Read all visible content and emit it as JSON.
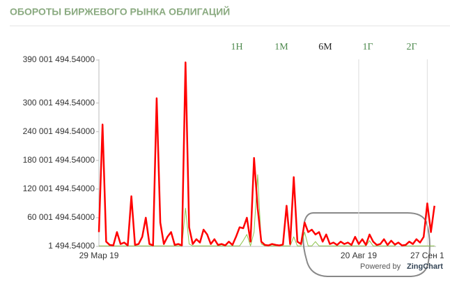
{
  "header": {
    "title": "ОБОРОТЫ БИРЖЕВОГО РЫНКА ОБЛИГАЦИЙ"
  },
  "range_buttons": [
    "1Н",
    "1М",
    "6М",
    "1Г",
    "2Г"
  ],
  "active_button": "6М",
  "footer": {
    "credit_prefix": "Powered by",
    "credit_brand": "ZingChart"
  },
  "chart_data": {
    "type": "line",
    "categories": [
      "29 Мар 19",
      null,
      null,
      null,
      null,
      null,
      null,
      null,
      null,
      null,
      null,
      null,
      null,
      null,
      null,
      null,
      null,
      null,
      null,
      null,
      null,
      null,
      null,
      null,
      null,
      null,
      null,
      null,
      null,
      null,
      null,
      null,
      null,
      null,
      null,
      null,
      null,
      null,
      null,
      null,
      null,
      null,
      null,
      null,
      null,
      null,
      null,
      null,
      null,
      null,
      null,
      null,
      null,
      null,
      null,
      null,
      null,
      null,
      null,
      null,
      null,
      null,
      null,
      null,
      null,
      null,
      null,
      null,
      null,
      null,
      null,
      null,
      "20 Авг 19",
      null,
      null,
      null,
      null,
      null,
      null,
      null,
      null,
      null,
      null,
      null,
      null,
      null,
      null,
      null,
      null,
      null,
      null,
      "27 Сен 1",
      null,
      null
    ],
    "series": [
      {
        "color": "#ff0000",
        "values": [
          30000000,
          255000000,
          10000000,
          3000000,
          2000000,
          30000000,
          5000000,
          8000000,
          2000000,
          105000000,
          3000000,
          5000000,
          20000000,
          60000000,
          5000000,
          2000000,
          310000000,
          50000000,
          5000000,
          20000000,
          30000000,
          3000000,
          5000000,
          2000000,
          385000000,
          40000000,
          5000000,
          15000000,
          8000000,
          35000000,
          25000000,
          5000000,
          15000000,
          3000000,
          5000000,
          2000000,
          10000000,
          3000000,
          20000000,
          40000000,
          38000000,
          60000000,
          10000000,
          185000000,
          80000000,
          10000000,
          3000000,
          2000000,
          5000000,
          3000000,
          2000000,
          4000000,
          85000000,
          5000000,
          145000000,
          10000000,
          5000000,
          50000000,
          30000000,
          35000000,
          25000000,
          30000000,
          10000000,
          25000000,
          5000000,
          8000000,
          3000000,
          10000000,
          5000000,
          8000000,
          3000000,
          20000000,
          5000000,
          15000000,
          3000000,
          25000000,
          10000000,
          3000000,
          5000000,
          15000000,
          3000000,
          12000000,
          4000000,
          8000000,
          2000000,
          3000000,
          10000000,
          5000000,
          15000000,
          8000000,
          20000000,
          90000000,
          30000000,
          85000000
        ]
      },
      {
        "color": "#8bc34a",
        "values": [
          1000000,
          1000000,
          1000000,
          1000000,
          1000000,
          1000000,
          1000000,
          1000000,
          1000000,
          1000000,
          1000000,
          1000000,
          1000000,
          1000000,
          1000000,
          1000000,
          1000000,
          1000000,
          1000000,
          1000000,
          1000000,
          1000000,
          1000000,
          1000000,
          80000000,
          5000000,
          1000000,
          1000000,
          1000000,
          1000000,
          1000000,
          1000000,
          1000000,
          1000000,
          1000000,
          1000000,
          1000000,
          1000000,
          1000000,
          1000000,
          12000000,
          25000000,
          1000000,
          30000000,
          150000000,
          5000000,
          1000000,
          1000000,
          1000000,
          1000000,
          1000000,
          1000000,
          1000000,
          1000000,
          20000000,
          1000000,
          1000000,
          30000000,
          1000000,
          1000000,
          10000000,
          1000000,
          1000000,
          1000000,
          1000000,
          1000000,
          1000000,
          1000000,
          1000000,
          1000000,
          1000000,
          1000000,
          1000000,
          1000000,
          1000000,
          12000000,
          1000000,
          1000000,
          1000000,
          1000000,
          1000000,
          1000000,
          1000000,
          8000000,
          1000000,
          1000000,
          1000000,
          1000000,
          1000000,
          1000000,
          1000000,
          1000000,
          1000000,
          1000000
        ]
      }
    ],
    "ylim": [
      1494.54,
      390001494.54
    ],
    "yticks": [
      {
        "value": 1494.54,
        "label": "1 494.54000"
      },
      {
        "value": 60001494.54,
        "label": "60 001 494.54000"
      },
      {
        "value": 120001494.54,
        "label": "120 001 494.54000"
      },
      {
        "value": 180001494.54,
        "label": "180 001 494.54000"
      },
      {
        "value": 240001494.54,
        "label": "240 001 494.54000"
      },
      {
        "value": 300001494.54,
        "label": "300 001 494.54000"
      },
      {
        "value": 390001494.54,
        "label": "390 001 494.54000"
      }
    ]
  }
}
